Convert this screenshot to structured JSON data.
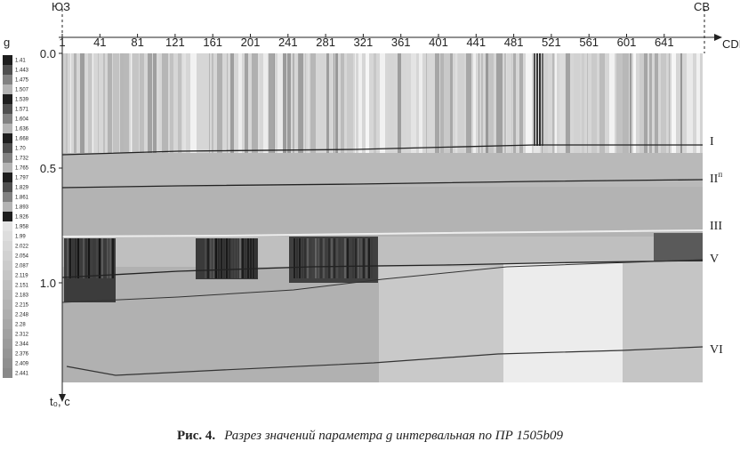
{
  "figure": {
    "corner_left": "ЮЗ",
    "corner_right": "СВ",
    "x_axis_label": "CDP",
    "x_ticks": [
      1,
      41,
      81,
      121,
      161,
      201,
      241,
      281,
      321,
      361,
      401,
      441,
      481,
      521,
      561,
      601,
      641
    ],
    "y_ticks": [
      "0.0",
      "0.5",
      "1.0"
    ],
    "y_axis_label": "t₀, с",
    "colorbar_title": "g",
    "colorbar_labels": [
      "1.41",
      "1.443",
      "1.475",
      "1.507",
      "1.539",
      "1.571",
      "1.604",
      "1.636",
      "1.668",
      "1.70",
      "1.732",
      "1.765",
      "1.797",
      "1.829",
      "1.861",
      "1.893",
      "1.926",
      "1.958",
      "1.99",
      "2.022",
      "2.054",
      "2.087",
      "2.119",
      "2.151",
      "2.183",
      "2.215",
      "2.248",
      "2.28",
      "2.312",
      "2.344",
      "2.376",
      "2.409",
      "2.441"
    ],
    "horizons": [
      {
        "label": "I"
      },
      {
        "label": "II",
        "sup": "п"
      },
      {
        "label": "III"
      },
      {
        "label": "V"
      },
      {
        "label": "VI"
      }
    ]
  },
  "caption": {
    "number": "Рис. 4.",
    "text": "Разрез значений параметра g интервальная по ПР 1505b09"
  }
}
